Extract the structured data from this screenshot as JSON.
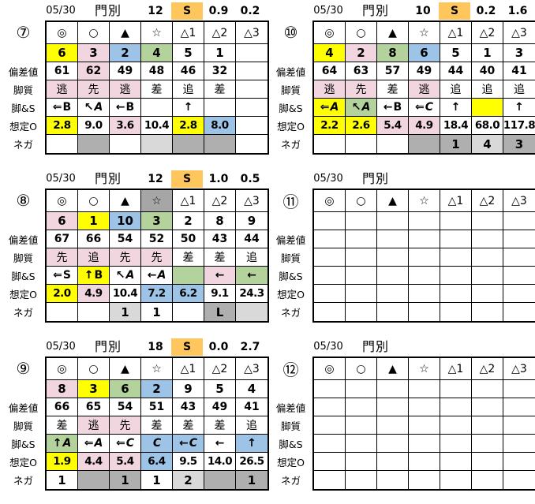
{
  "colors": {
    "yellow": "#FFFF00",
    "pink": "#F1D6E0",
    "blue": "#9DC3E6",
    "green": "#B4D29C",
    "orange_s": "#FFC65E",
    "gray": "#AFAFAF",
    "light_gray": "#D9D9D9",
    "dark_gray": "#A6A6A6",
    "border": "#000000"
  },
  "tables": [
    {
      "no": "7",
      "badge": "⑦",
      "header": {
        "date": "05/30",
        "track": "門別",
        "race_no": "12",
        "s": "S",
        "v1": "0.9",
        "v2": "0.2"
      },
      "rows": [
        {
          "key": "marks",
          "label": "",
          "values": [
            "◎",
            "○",
            "▲",
            "☆",
            "△1",
            "△2",
            "△3"
          ],
          "bg": [
            "",
            "",
            "",
            "",
            "",
            "",
            ""
          ]
        },
        {
          "key": "numbers",
          "label": "",
          "values": [
            "6",
            "3",
            "2",
            "4",
            "5",
            "1",
            ""
          ],
          "bg": [
            "y",
            "p",
            "b",
            "g",
            "",
            "",
            ""
          ]
        },
        {
          "key": "hensachi",
          "label": "偏差値",
          "values": [
            "61",
            "62",
            "49",
            "48",
            "46",
            "32",
            ""
          ],
          "bg": [
            "",
            "p",
            "",
            "",
            "",
            "",
            ""
          ]
        },
        {
          "key": "kyakushitsu",
          "label": "脚質",
          "values": [
            "逃",
            "先",
            "逃",
            "差",
            "追",
            "差",
            ""
          ],
          "bg": [
            "p",
            "p",
            "p",
            "",
            "",
            "",
            ""
          ]
        },
        {
          "key": "kyaku_s",
          "label": "脚&S",
          "values": [
            "⇐B",
            "↖A",
            "←B",
            "",
            "↑",
            "",
            ""
          ],
          "bg": [
            "",
            "",
            "",
            "",
            "",
            "",
            ""
          ]
        },
        {
          "key": "soutei_o",
          "label": "想定O",
          "values": [
            "2.8",
            "9.0",
            "3.6",
            "10.4",
            "2.8",
            "8.0",
            ""
          ],
          "bg": [
            "y",
            "",
            "p",
            "",
            "y",
            "b",
            ""
          ]
        },
        {
          "key": "nega",
          "label": "ネガ",
          "values": [
            "",
            "",
            "",
            "",
            "",
            "",
            ""
          ],
          "bg": [
            "",
            "gy",
            "",
            "lg",
            "gy",
            "gy",
            ""
          ]
        }
      ]
    },
    {
      "no": "8",
      "badge": "⑧",
      "header": {
        "date": "05/30",
        "track": "門別",
        "race_no": "12",
        "s": "S",
        "v1": "1.0",
        "v2": "0.5"
      },
      "rows": [
        {
          "key": "marks",
          "label": "",
          "values": [
            "◎",
            "○",
            "▲",
            "☆",
            "△1",
            "△2",
            "△3"
          ],
          "bg": [
            "",
            "",
            "",
            "dg",
            "",
            "",
            ""
          ]
        },
        {
          "key": "numbers",
          "label": "",
          "values": [
            "6",
            "1",
            "10",
            "3",
            "2",
            "8",
            "9"
          ],
          "bg": [
            "p",
            "y",
            "b",
            "g",
            "",
            "",
            ""
          ]
        },
        {
          "key": "hensachi",
          "label": "偏差値",
          "values": [
            "67",
            "66",
            "54",
            "52",
            "50",
            "43",
            "44"
          ],
          "bg": [
            "",
            "",
            "",
            "",
            "",
            "",
            ""
          ]
        },
        {
          "key": "kyakushitsu",
          "label": "脚質",
          "values": [
            "先",
            "追",
            "先",
            "先",
            "差",
            "差",
            "追"
          ],
          "bg": [
            "p",
            "p",
            "p",
            "p",
            "",
            "",
            ""
          ]
        },
        {
          "key": "kyaku_s",
          "label": "脚&S",
          "values": [
            "⇐S",
            "↑B",
            "↖A",
            "←A",
            "",
            "←",
            "←"
          ],
          "bg": [
            "",
            "y",
            "",
            "",
            "g",
            "p",
            "g"
          ]
        },
        {
          "key": "soutei_o",
          "label": "想定O",
          "values": [
            "2.0",
            "4.9",
            "10.4",
            "7.2",
            "6.2",
            "9.1",
            "24.3"
          ],
          "bg": [
            "y",
            "p",
            "",
            "b",
            "b",
            "",
            ""
          ]
        },
        {
          "key": "nega",
          "label": "ネガ",
          "values": [
            "",
            "",
            "1",
            "1",
            "",
            "L",
            ""
          ],
          "bg": [
            "",
            "",
            "lg",
            "",
            "",
            "gy",
            "lg"
          ]
        }
      ]
    },
    {
      "no": "9",
      "badge": "⑨",
      "header": {
        "date": "05/30",
        "track": "門別",
        "race_no": "18",
        "s": "S",
        "v1": "0.0",
        "v2": "2.7"
      },
      "rows": [
        {
          "key": "marks",
          "label": "",
          "values": [
            "◎",
            "○",
            "▲",
            "☆",
            "△1",
            "△2",
            "△3"
          ],
          "bg": [
            "",
            "",
            "",
            "",
            "",
            "",
            ""
          ]
        },
        {
          "key": "numbers",
          "label": "",
          "values": [
            "8",
            "3",
            "6",
            "2",
            "9",
            "5",
            "4"
          ],
          "bg": [
            "p",
            "y",
            "g",
            "b",
            "",
            "",
            ""
          ]
        },
        {
          "key": "hensachi",
          "label": "偏差値",
          "values": [
            "66",
            "65",
            "54",
            "51",
            "43",
            "49",
            "41"
          ],
          "bg": [
            "",
            "",
            "",
            "",
            "",
            "",
            ""
          ]
        },
        {
          "key": "kyakushitsu",
          "label": "脚質",
          "values": [
            "差",
            "逃",
            "先",
            "差",
            "差",
            "差",
            "追"
          ],
          "bg": [
            "",
            "p",
            "p",
            "",
            "",
            "",
            ""
          ]
        },
        {
          "key": "kyaku_s",
          "label": "脚&S",
          "values": [
            "↑A",
            "⇐A",
            "⇐C",
            "C",
            "←C",
            "←",
            "↑"
          ],
          "bg": [
            "g",
            "",
            "",
            "b",
            "b",
            "",
            "b"
          ]
        },
        {
          "key": "soutei_o",
          "label": "想定O",
          "values": [
            "1.9",
            "4.4",
            "5.4",
            "6.4",
            "9.5",
            "14.0",
            "26.5"
          ],
          "bg": [
            "y",
            "p",
            "p",
            "b",
            "",
            "",
            ""
          ]
        },
        {
          "key": "nega",
          "label": "ネガ",
          "values": [
            "1",
            "",
            "1",
            "1",
            "2",
            "",
            "1"
          ],
          "bg": [
            "",
            "gy",
            "gy",
            "",
            "lg",
            "gy",
            "gy"
          ]
        }
      ]
    },
    {
      "no": "10",
      "badge": "⑩",
      "header": {
        "date": "05/30",
        "track": "門別",
        "race_no": "10",
        "s": "S",
        "v1": "0.2",
        "v2": "1.6"
      },
      "rows": [
        {
          "key": "marks",
          "label": "",
          "values": [
            "◎",
            "○",
            "▲",
            "☆",
            "△1",
            "△2",
            "△3"
          ],
          "bg": [
            "",
            "",
            "",
            "",
            "",
            "",
            ""
          ]
        },
        {
          "key": "numbers",
          "label": "",
          "values": [
            "4",
            "2",
            "8",
            "6",
            "5",
            "1",
            "3"
          ],
          "bg": [
            "y",
            "p",
            "g",
            "b",
            "",
            "",
            ""
          ]
        },
        {
          "key": "hensachi",
          "label": "偏差値",
          "values": [
            "64",
            "63",
            "57",
            "49",
            "44",
            "40",
            "41"
          ],
          "bg": [
            "",
            "",
            "",
            "",
            "",
            "",
            ""
          ]
        },
        {
          "key": "kyakushitsu",
          "label": "脚質",
          "values": [
            "逃",
            "先",
            "差",
            "逃",
            "追",
            "追",
            "追"
          ],
          "bg": [
            "p",
            "p",
            "",
            "p",
            "",
            "",
            ""
          ]
        },
        {
          "key": "kyaku_s",
          "label": "脚&S",
          "values": [
            "⇐A",
            "↖A",
            "←B",
            "⇐C",
            "↑",
            "",
            "↑"
          ],
          "bg": [
            "y",
            "g",
            "",
            "",
            "",
            "y",
            ""
          ]
        },
        {
          "key": "soutei_o",
          "label": "想定O",
          "values": [
            "2.2",
            "2.6",
            "5.4",
            "4.9",
            "18.4",
            "68.0",
            "117.8"
          ],
          "bg": [
            "y",
            "y",
            "p",
            "p",
            "",
            "",
            ""
          ]
        },
        {
          "key": "nega",
          "label": "ネガ",
          "values": [
            "",
            "",
            "",
            "",
            "1",
            "4",
            "3"
          ],
          "bg": [
            "",
            "",
            "",
            "gy",
            "gy",
            "lg",
            "gy"
          ]
        }
      ]
    },
    {
      "no": "11",
      "badge": "⑪",
      "header": {
        "date": "05/30",
        "track": "門別",
        "race_no": "",
        "s": "",
        "v1": "",
        "v2": ""
      },
      "rows": [
        {
          "key": "marks",
          "label": "",
          "values": [
            "◎",
            "○",
            "▲",
            "☆",
            "△1",
            "△2",
            "△3"
          ],
          "bg": [
            "",
            "",
            "",
            "",
            "",
            "",
            ""
          ]
        },
        {
          "key": "numbers",
          "label": "",
          "values": [
            "",
            "",
            "",
            "",
            "",
            "",
            ""
          ],
          "bg": [
            "",
            "",
            "",
            "",
            "",
            "",
            ""
          ]
        },
        {
          "key": "hensachi",
          "label": "偏差値",
          "values": [
            "",
            "",
            "",
            "",
            "",
            "",
            ""
          ],
          "bg": [
            "",
            "",
            "",
            "",
            "",
            "",
            ""
          ]
        },
        {
          "key": "kyakushitsu",
          "label": "脚質",
          "values": [
            "",
            "",
            "",
            "",
            "",
            "",
            ""
          ],
          "bg": [
            "",
            "",
            "",
            "",
            "",
            "",
            ""
          ]
        },
        {
          "key": "kyaku_s",
          "label": "脚&S",
          "values": [
            "",
            "",
            "",
            "",
            "",
            "",
            ""
          ],
          "bg": [
            "",
            "",
            "",
            "",
            "",
            "",
            ""
          ]
        },
        {
          "key": "soutei_o",
          "label": "想定O",
          "values": [
            "",
            "",
            "",
            "",
            "",
            "",
            ""
          ],
          "bg": [
            "",
            "",
            "",
            "",
            "",
            "",
            ""
          ]
        },
        {
          "key": "nega",
          "label": "ネガ",
          "values": [
            "",
            "",
            "",
            "",
            "",
            "",
            ""
          ],
          "bg": [
            "",
            "",
            "",
            "",
            "",
            "",
            ""
          ]
        }
      ]
    },
    {
      "no": "12",
      "badge": "⑫",
      "header": {
        "date": "05/30",
        "track": "門別",
        "race_no": "",
        "s": "",
        "v1": "",
        "v2": ""
      },
      "rows": [
        {
          "key": "marks",
          "label": "",
          "values": [
            "◎",
            "○",
            "▲",
            "☆",
            "△1",
            "△2",
            "△3"
          ],
          "bg": [
            "",
            "",
            "",
            "",
            "",
            "",
            ""
          ]
        },
        {
          "key": "numbers",
          "label": "",
          "values": [
            "",
            "",
            "",
            "",
            "",
            "",
            ""
          ],
          "bg": [
            "",
            "",
            "",
            "",
            "",
            "",
            ""
          ]
        },
        {
          "key": "hensachi",
          "label": "偏差値",
          "values": [
            "",
            "",
            "",
            "",
            "",
            "",
            ""
          ],
          "bg": [
            "",
            "",
            "",
            "",
            "",
            "",
            ""
          ]
        },
        {
          "key": "kyakushitsu",
          "label": "脚質",
          "values": [
            "",
            "",
            "",
            "",
            "",
            "",
            ""
          ],
          "bg": [
            "",
            "",
            "",
            "",
            "",
            "",
            ""
          ]
        },
        {
          "key": "kyaku_s",
          "label": "脚&S",
          "values": [
            "",
            "",
            "",
            "",
            "",
            "",
            ""
          ],
          "bg": [
            "",
            "",
            "",
            "",
            "",
            "",
            ""
          ]
        },
        {
          "key": "soutei_o",
          "label": "想定O",
          "values": [
            "",
            "",
            "",
            "",
            "",
            "",
            ""
          ],
          "bg": [
            "",
            "",
            "",
            "",
            "",
            "",
            ""
          ]
        },
        {
          "key": "nega",
          "label": "ネガ",
          "values": [
            "",
            "",
            "",
            "",
            "",
            "",
            ""
          ],
          "bg": [
            "",
            "",
            "",
            "",
            "",
            "",
            ""
          ]
        }
      ]
    }
  ]
}
